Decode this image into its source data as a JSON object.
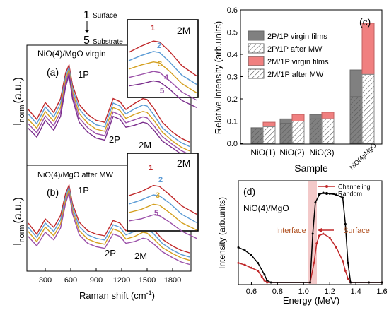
{
  "colors": {
    "curves": [
      "#c0282a",
      "#5b9bd5",
      "#d4a020",
      "#9a4fa8",
      "#7a2d8c"
    ],
    "virgin_bar": "#808080",
    "mw_bar": "#ffffff",
    "virgin_2m": "#f08080",
    "channeling": "#c0282a",
    "random": "#000000",
    "shade": "#f3c9c9"
  },
  "legend_depth": {
    "top_num": "1",
    "top_label": "Surface",
    "bottom_num": "5",
    "bottom_label": "Substrate"
  },
  "panel_a": {
    "tag": "(a)",
    "sample": "NiO(4)/MgO virgin",
    "ylabel_main": "I",
    "ylabel_sub": "norm",
    "ylabel_unit": "(a.u.)",
    "peak_1p": "1P",
    "peak_2p": "2P",
    "peak_2m": "2M"
  },
  "panel_b": {
    "tag": "(b)",
    "sample": "NiO(4)/MgO after MW",
    "ylabel_main": "I",
    "ylabel_sub": "norm",
    "ylabel_unit": "(a.u.)",
    "peak_1p": "1P",
    "peak_2p": "2P",
    "peak_2m": "2M"
  },
  "inset_a": {
    "title": "2M",
    "labels": [
      "1",
      "2",
      "3",
      "4",
      "5"
    ]
  },
  "inset_b": {
    "title": "2M",
    "labels": [
      "1",
      "2",
      "3",
      "5"
    ]
  },
  "raman_axis": {
    "xlabel_main": "Raman shift (cm",
    "xlabel_sup": "-1",
    "xlabel_end": ")",
    "ticks": [
      "300",
      "600",
      "900",
      "1200",
      "1500",
      "1800"
    ]
  },
  "panel_c": {
    "tag": "(c)",
    "xlabel": "Sample",
    "ylabel": "Relative intensity (arb.units)",
    "yticks": [
      "0.0",
      "0.1",
      "0.2",
      "0.3",
      "0.4",
      "0.5",
      "0.6"
    ]
  },
  "panel_d": {
    "tag": "(d)",
    "sample": "NiO(4)/MgO",
    "interface": "Interface",
    "surface": "Surface",
    "xlabel": "Energy (MeV)",
    "ylabel": "Intensity (arb.units)",
    "xticks": [
      "0.6",
      "0.8",
      "1.0",
      "1.2",
      "1.4",
      "1.6"
    ]
  },
  "chart_data": [
    {
      "type": "line",
      "panel": "(a)",
      "xlabel": "Raman shift (cm-1)",
      "ylabel": "Inorm (a.u.)",
      "xlim": [
        100,
        2000
      ],
      "x": [
        100,
        200,
        300,
        400,
        480,
        540,
        580,
        620,
        700,
        800,
        900,
        1000,
        1100,
        1180,
        1250,
        1350,
        1450,
        1500,
        1580,
        1680,
        1800,
        1900,
        2000
      ],
      "series": [
        {
          "name": "1",
          "values": [
            0.55,
            0.45,
            0.62,
            0.52,
            0.66,
            0.92,
            1.0,
            0.8,
            0.6,
            0.5,
            0.44,
            0.42,
            0.66,
            0.63,
            0.55,
            0.61,
            0.66,
            0.65,
            0.56,
            0.42,
            0.32,
            0.26,
            0.22
          ]
        },
        {
          "name": "2",
          "values": [
            0.53,
            0.43,
            0.6,
            0.5,
            0.64,
            0.91,
            1.0,
            0.79,
            0.58,
            0.48,
            0.42,
            0.4,
            0.64,
            0.61,
            0.53,
            0.58,
            0.62,
            0.61,
            0.52,
            0.39,
            0.3,
            0.24,
            0.2
          ]
        },
        {
          "name": "3",
          "values": [
            0.5,
            0.41,
            0.58,
            0.48,
            0.62,
            0.9,
            1.0,
            0.78,
            0.56,
            0.46,
            0.4,
            0.38,
            0.62,
            0.59,
            0.51,
            0.55,
            0.58,
            0.57,
            0.49,
            0.37,
            0.28,
            0.22,
            0.18
          ]
        },
        {
          "name": "4",
          "values": [
            0.48,
            0.39,
            0.56,
            0.46,
            0.6,
            0.89,
            1.0,
            0.77,
            0.54,
            0.44,
            0.38,
            0.36,
            0.6,
            0.57,
            0.49,
            0.52,
            0.55,
            0.54,
            0.46,
            0.35,
            0.27,
            0.21,
            0.17
          ]
        },
        {
          "name": "5",
          "values": [
            0.46,
            0.37,
            0.54,
            0.44,
            0.58,
            0.88,
            1.0,
            0.76,
            0.52,
            0.42,
            0.36,
            0.34,
            0.58,
            0.55,
            0.47,
            0.49,
            0.52,
            0.51,
            0.44,
            0.33,
            0.26,
            0.2,
            0.16
          ]
        }
      ]
    },
    {
      "type": "line",
      "panel": "(b)",
      "xlabel": "Raman shift (cm-1)",
      "ylabel": "Inorm (a.u.)",
      "xlim": [
        100,
        2000
      ],
      "x": [
        100,
        200,
        300,
        400,
        480,
        540,
        580,
        620,
        700,
        800,
        900,
        1000,
        1100,
        1180,
        1250,
        1350,
        1450,
        1500,
        1580,
        1680,
        1800,
        1900,
        2000
      ],
      "series": [
        {
          "name": "1",
          "values": [
            0.55,
            0.42,
            0.6,
            0.5,
            0.64,
            0.9,
            1.0,
            0.78,
            0.56,
            0.46,
            0.42,
            0.4,
            0.58,
            0.55,
            0.46,
            0.5,
            0.56,
            0.55,
            0.47,
            0.36,
            0.28,
            0.23,
            0.2
          ]
        },
        {
          "name": "2",
          "values": [
            0.53,
            0.41,
            0.58,
            0.48,
            0.62,
            0.89,
            1.0,
            0.77,
            0.54,
            0.44,
            0.4,
            0.38,
            0.56,
            0.53,
            0.44,
            0.48,
            0.53,
            0.52,
            0.45,
            0.34,
            0.26,
            0.21,
            0.18
          ]
        },
        {
          "name": "3",
          "values": [
            0.51,
            0.39,
            0.56,
            0.46,
            0.6,
            0.88,
            1.0,
            0.76,
            0.52,
            0.42,
            0.38,
            0.36,
            0.54,
            0.51,
            0.42,
            0.45,
            0.5,
            0.49,
            0.42,
            0.32,
            0.25,
            0.2,
            0.17
          ]
        },
        {
          "name": "5",
          "values": [
            0.48,
            0.37,
            0.53,
            0.44,
            0.58,
            0.87,
            1.0,
            0.75,
            0.5,
            0.4,
            0.36,
            0.34,
            0.51,
            0.48,
            0.4,
            0.42,
            0.46,
            0.45,
            0.39,
            0.3,
            0.23,
            0.18,
            0.15
          ]
        }
      ]
    },
    {
      "type": "bar",
      "panel": "(c)",
      "xlabel": "Sample",
      "ylabel": "Relative intensity (arb.units)",
      "ylim": [
        0,
        0.6
      ],
      "categories": [
        "NiO(1)",
        "NiO(2)",
        "NiO(3)",
        "NiO(4)/MgO"
      ],
      "series": [
        {
          "name": "2P/1P virgin films",
          "values": [
            0.07,
            0.11,
            0.13,
            0.33
          ]
        },
        {
          "name": "2P/1P after MW",
          "values": [
            0.07,
            0.09,
            0.11,
            0.21
          ]
        },
        {
          "name": "2M/1P virgin films",
          "values": [
            0.095,
            0.13,
            0.14,
            0.54
          ]
        },
        {
          "name": "2M/1P after MW",
          "values": [
            0.075,
            0.1,
            0.11,
            0.31
          ]
        }
      ]
    },
    {
      "type": "line",
      "panel": "(d)",
      "xlabel": "Energy (MeV)",
      "ylabel": "Intensity (arb.units)",
      "xlim": [
        0.5,
        1.6
      ],
      "ylim": [
        0,
        1.0
      ],
      "series": [
        {
          "name": "Channeling",
          "x": [
            0.5,
            0.55,
            0.6,
            0.65,
            0.68,
            0.7,
            0.72,
            1.05,
            1.08,
            1.1,
            1.12,
            1.15,
            1.2,
            1.25,
            1.3,
            1.32,
            1.34,
            1.36,
            1.5,
            1.6
          ],
          "values": [
            0.2,
            0.18,
            0.15,
            0.12,
            0.06,
            0.02,
            0.0,
            0.0,
            0.2,
            0.4,
            0.48,
            0.5,
            0.46,
            0.36,
            0.22,
            0.12,
            0.04,
            0.0,
            0.0,
            0.0
          ]
        },
        {
          "name": "Random",
          "x": [
            0.5,
            0.55,
            0.6,
            0.65,
            0.7,
            0.72,
            0.75,
            1.05,
            1.07,
            1.09,
            1.12,
            1.15,
            1.2,
            1.25,
            1.3,
            1.32,
            1.34,
            1.36,
            1.5,
            1.6
          ],
          "values": [
            0.36,
            0.33,
            0.28,
            0.2,
            0.08,
            0.02,
            0.0,
            0.0,
            0.5,
            0.82,
            0.9,
            0.92,
            0.91,
            0.9,
            0.87,
            0.6,
            0.2,
            0.0,
            0.0,
            0.0
          ]
        }
      ]
    }
  ]
}
